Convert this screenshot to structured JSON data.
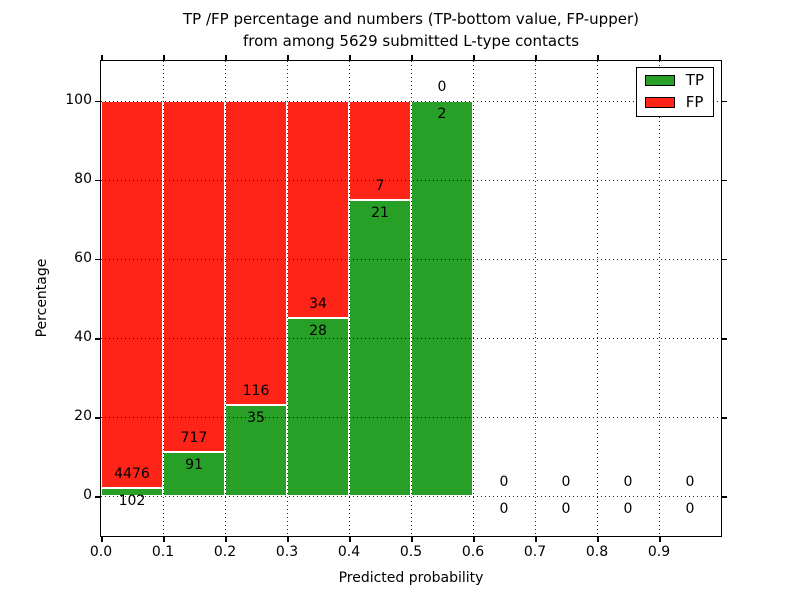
{
  "title": {
    "line1": "TP /FP percentage and numbers (TP-bottom value, FP-upper)",
    "line2": "from among 5629 submitted L-type contacts"
  },
  "axes": {
    "xlabel": "Predicted probability",
    "ylabel": "Percentage"
  },
  "legend": {
    "position": "upper right",
    "items": [
      {
        "label": "TP",
        "color": "#28a028"
      },
      {
        "label": "FP",
        "color": "#ff2418"
      }
    ]
  },
  "chart_data": {
    "type": "bar",
    "stacked": true,
    "normalized_to_percent": true,
    "title": "TP /FP percentage and numbers (TP-bottom value, FP-upper) from among 5629 submitted L-type contacts",
    "xlabel": "Predicted probability",
    "ylabel": "Percentage",
    "bins": [
      "0.0-0.1",
      "0.1-0.2",
      "0.2-0.3",
      "0.3-0.4",
      "0.4-0.5",
      "0.5-0.6",
      "0.6-0.7",
      "0.7-0.8",
      "0.8-0.9",
      "0.9-1.0"
    ],
    "bin_width": 0.1,
    "series": [
      {
        "name": "TP",
        "color": "#28a028",
        "counts": [
          102,
          91,
          35,
          28,
          21,
          2,
          0,
          0,
          0,
          0
        ]
      },
      {
        "name": "FP",
        "color": "#ff2418",
        "counts": [
          4476,
          717,
          116,
          34,
          7,
          0,
          0,
          0,
          0,
          0
        ]
      }
    ],
    "tp_percent_per_bin": [
      2.23,
      11.26,
      23.18,
      45.16,
      75.0,
      100.0,
      0,
      0,
      0,
      0
    ],
    "xticks": [
      0.0,
      0.1,
      0.2,
      0.3,
      0.4,
      0.5,
      0.6,
      0.7,
      0.8,
      0.9
    ],
    "xtick_labels": [
      "0.0",
      "0.1",
      "0.2",
      "0.3",
      "0.4",
      "0.5",
      "0.6",
      "0.7",
      "0.8",
      "0.9"
    ],
    "yticks": [
      0,
      20,
      40,
      60,
      80,
      100
    ],
    "ytick_labels": [
      "0",
      "20",
      "40",
      "60",
      "80",
      "100"
    ],
    "xlim": [
      0.0,
      1.0
    ],
    "ylim": [
      -10,
      110
    ],
    "grid": true,
    "grid_style": "dotted",
    "legend_position": "upper right"
  }
}
